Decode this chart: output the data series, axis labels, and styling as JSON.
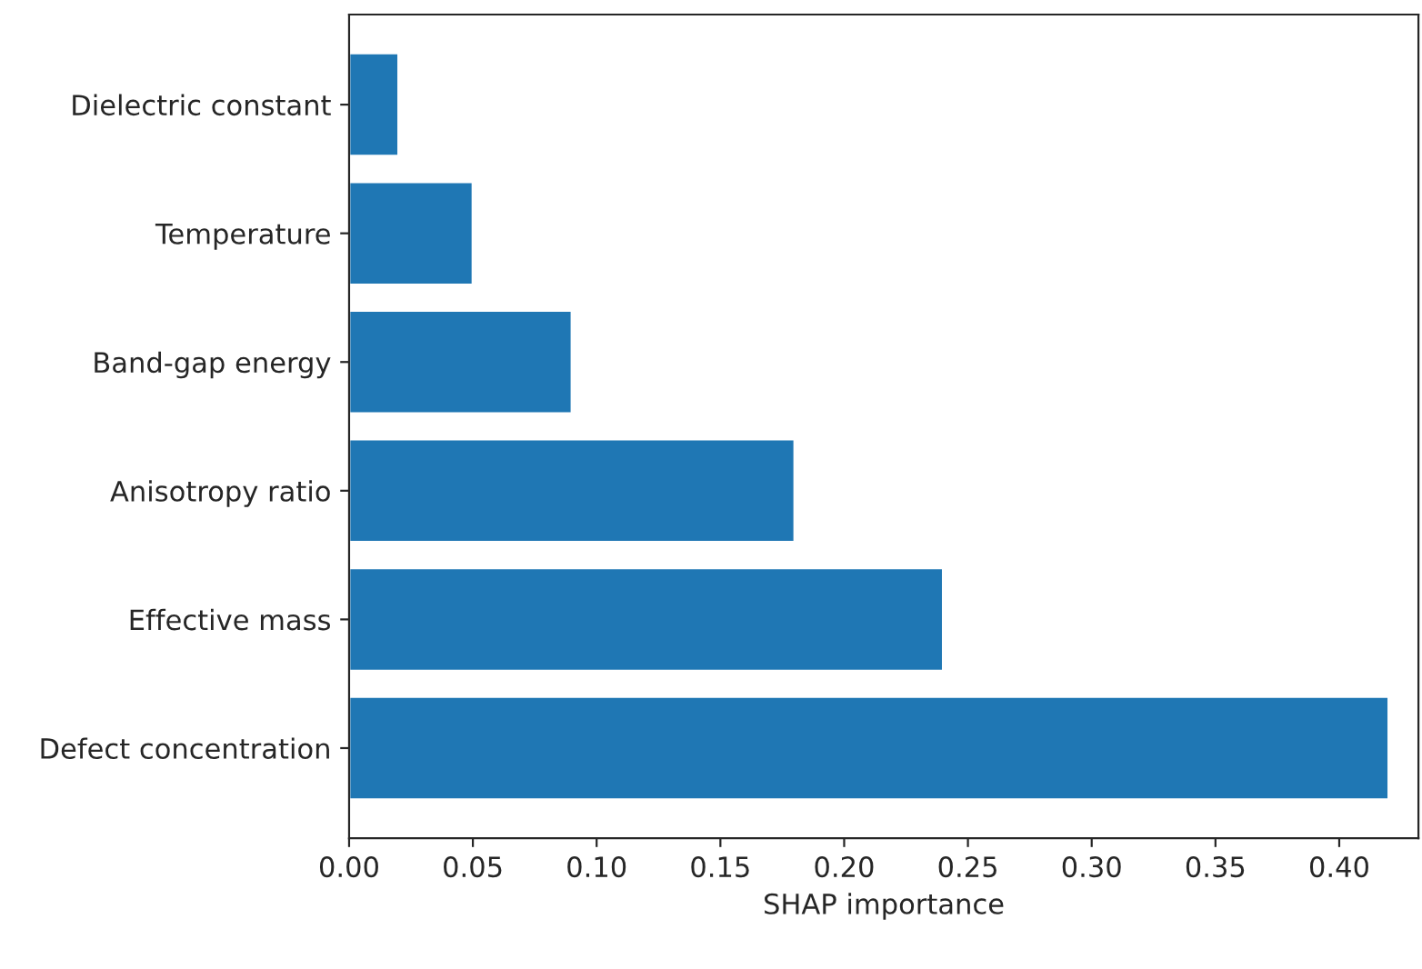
{
  "chart_data": {
    "type": "bar",
    "orientation": "horizontal",
    "xlabel": "SHAP importance",
    "categories": [
      "Dielectric constant",
      "Temperature",
      "Band-gap energy",
      "Anisotropy ratio",
      "Effective mass",
      "Defect concentration"
    ],
    "values": [
      0.02,
      0.05,
      0.09,
      0.18,
      0.24,
      0.42
    ],
    "color": "#1f77b4",
    "xlim": [
      0,
      0.432
    ],
    "xticks": [
      {
        "value": 0,
        "label": "0.00"
      },
      {
        "value": 0.05,
        "label": "0.05"
      },
      {
        "value": 0.1,
        "label": "0.10"
      },
      {
        "value": 0.15,
        "label": "0.15"
      },
      {
        "value": 0.2,
        "label": "0.20"
      },
      {
        "value": 0.25,
        "label": "0.25"
      },
      {
        "value": 0.3,
        "label": "0.30"
      },
      {
        "value": 0.35,
        "label": "0.35"
      },
      {
        "value": 0.4,
        "label": "0.40"
      }
    ],
    "grid": false
  }
}
